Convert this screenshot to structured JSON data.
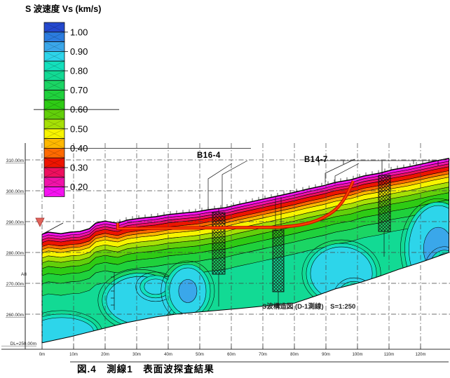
{
  "legend": {
    "title": "S 波速度 Vs (km/s)",
    "unit_labels": [
      "1.00",
      "0.90",
      "0.80",
      "0.70",
      "0.60",
      "0.50",
      "0.40",
      "0.30",
      "0.20"
    ],
    "colors": [
      "#2448ce",
      "#2b7ce0",
      "#3aa7ea",
      "#2dd5ea",
      "#13e0bc",
      "#12da94",
      "#1bd564",
      "#1fd13c",
      "#2ecb14",
      "#62cf0a",
      "#a6e006",
      "#f7f400",
      "#ffb800",
      "#ff6a00",
      "#ee1400",
      "#ee0f5e",
      "#f013a8",
      "#f513f0"
    ]
  },
  "axes": {
    "elevation_labels": [
      "310.00m",
      "300.00m",
      "290.00m",
      "280.00m",
      "270.00m",
      "260.00m",
      "DL=250.00m"
    ],
    "distance_labels": [
      "0m",
      "10m",
      "20m",
      "30m",
      "40m",
      "50m",
      "60m",
      "70m",
      "80m",
      "90m",
      "100m",
      "110m",
      "120m"
    ]
  },
  "annotations": {
    "borehole_1": "B16-4",
    "borehole_2": "B14-7",
    "survey_point": "A8",
    "section_label": "S波構造図 (D-1測線)　S=1:250"
  },
  "caption": "図.4　測線1　表面波探査結果",
  "chart_data": {
    "type": "heatmap",
    "subtype": "filled-contour-velocity-cross-section",
    "title": "S波構造図 (D-1測線)　S=1:250",
    "xlabel": "",
    "ylabel": "",
    "x_ticks": [
      "0m",
      "10m",
      "20m",
      "30m",
      "40m",
      "50m",
      "60m",
      "70m",
      "80m",
      "90m",
      "100m",
      "110m",
      "120m"
    ],
    "y_ticks": [
      "310.00m",
      "300.00m",
      "290.00m",
      "280.00m",
      "270.00m",
      "260.00m",
      "DL=250.00m"
    ],
    "x_range_m": [
      0,
      129
    ],
    "elevation_range_m": [
      250,
      311
    ],
    "legend_title": "S 波速度 Vs (km/s)",
    "vs_levels_km_s": [
      1.0,
      0.9,
      0.8,
      0.7,
      0.6,
      0.5,
      0.4,
      0.3,
      0.2
    ],
    "grid": true,
    "legend_position": "top-left",
    "surface_profile_m": [
      [
        0,
        285.9
      ],
      [
        2,
        286.6
      ],
      [
        6,
        286.1
      ],
      [
        9,
        286.6
      ],
      [
        12,
        286.8
      ],
      [
        15,
        287.7
      ],
      [
        17,
        289.5
      ],
      [
        20,
        290.2
      ],
      [
        22,
        289.8
      ],
      [
        24,
        289.5
      ],
      [
        27,
        290.5
      ],
      [
        31,
        291.1
      ],
      [
        36,
        291.6
      ],
      [
        40,
        292.3
      ],
      [
        44,
        292.7
      ],
      [
        49,
        293.2
      ],
      [
        53,
        293.9
      ],
      [
        58,
        294.5
      ],
      [
        62,
        295.5
      ],
      [
        67,
        296.6
      ],
      [
        71,
        297.5
      ],
      [
        76,
        298.6
      ],
      [
        80,
        299.5
      ],
      [
        84,
        300.5
      ],
      [
        89,
        301.6
      ],
      [
        93,
        302.7
      ],
      [
        98,
        303.6
      ],
      [
        102,
        304.8
      ],
      [
        107,
        305.7
      ],
      [
        111,
        306.8
      ],
      [
        116,
        307.7
      ],
      [
        120,
        308.6
      ],
      [
        124,
        309.5
      ],
      [
        129,
        310.5
      ]
    ],
    "bottom_profile_m": [
      [
        0,
        250.7
      ],
      [
        9,
        252.7
      ],
      [
        18,
        255.0
      ],
      [
        27,
        257.3
      ],
      [
        36,
        259.1
      ],
      [
        44,
        260.2
      ],
      [
        53,
        261.0
      ],
      [
        62,
        261.8
      ],
      [
        71,
        262.7
      ],
      [
        80,
        263.6
      ],
      [
        87,
        266.0
      ],
      [
        93,
        268.2
      ],
      [
        100,
        270.0
      ],
      [
        107,
        272.3
      ],
      [
        113,
        274.5
      ],
      [
        120,
        276.8
      ],
      [
        129,
        280.0
      ]
    ],
    "depth_bands_below_surface_m": [
      {
        "vs_km_s": "0.15-0.20",
        "color": "#f513f0",
        "top": 0.0,
        "base": 0.9
      },
      {
        "vs_km_s": "0.20-0.25",
        "color": "#f013a8",
        "top": 0.9,
        "base": 1.8
      },
      {
        "vs_km_s": "0.25-0.30",
        "color": "#ee0f5e",
        "top": 1.8,
        "base": 2.7
      },
      {
        "vs_km_s": "0.30-0.35",
        "color": "#ee1400",
        "top": 2.7,
        "base": 4.0
      },
      {
        "vs_km_s": "0.35-0.40",
        "color": "#ff6a00",
        "top": 4.0,
        "base": 5.0
      },
      {
        "vs_km_s": "0.40-0.45",
        "color": "#ffb800",
        "top": 5.0,
        "base": 6.1
      },
      {
        "vs_km_s": "0.45-0.50",
        "color": "#f7f400",
        "top": 6.1,
        "base": 7.7
      },
      {
        "vs_km_s": "0.50-0.55",
        "color": "#a6e006",
        "top": 7.7,
        "base": 9.3
      },
      {
        "vs_km_s": "0.55-0.60",
        "color": "#62cf0a",
        "top": 9.3,
        "base": 11.1
      },
      {
        "vs_km_s": "0.60-0.65",
        "color": "#2ecb14",
        "top": 11.1,
        "base": 13.4
      },
      {
        "vs_km_s": "0.65-0.70",
        "color": "#1fd13c",
        "top": 13.4,
        "base": 16.1
      },
      {
        "vs_km_s": "0.70-0.75",
        "color": "#1bd564",
        "top": 16.1,
        "base": 20.0
      }
    ],
    "base_color": "#12da94",
    "high_velocity_zones": [
      {
        "x_m": 6.2,
        "elev_m": 254.1,
        "rx_m": 10.2,
        "ry_m": 4.8,
        "core": false
      },
      {
        "x_m": 31.1,
        "elev_m": 264.5,
        "rx_m": 10.7,
        "ry_m": 7.7,
        "core": false
      },
      {
        "x_m": 36.0,
        "elev_m": 268.9,
        "rx_m": 3.6,
        "ry_m": 2.5,
        "core": false
      },
      {
        "x_m": 46.2,
        "elev_m": 267.5,
        "rx_m": 5.8,
        "ry_m": 7.5,
        "core": true
      },
      {
        "x_m": 94.9,
        "elev_m": 273.2,
        "rx_m": 9.8,
        "ry_m": 8.6,
        "core": false
      },
      {
        "x_m": 98.9,
        "elev_m": 265.9,
        "rx_m": 3.8,
        "ry_m": 3.6,
        "core": true
      },
      {
        "x_m": 125.6,
        "elev_m": 281.1,
        "rx_m": 9.3,
        "ry_m": 14.1,
        "core": true
      },
      {
        "x_m": 127.6,
        "elev_m": 273.2,
        "rx_m": 4.0,
        "ry_m": 6.4,
        "core": false
      }
    ],
    "pocket_colors": {
      "ring": "#13e0bc",
      "fill": "#2dd5ea",
      "core": "#3aa7ea"
    },
    "boreholes": [
      {
        "name": "B16-4",
        "x_m": 56
      },
      {
        "name": "B14-7",
        "x_m": 75
      }
    ],
    "design_line_color": "#ee2200"
  }
}
